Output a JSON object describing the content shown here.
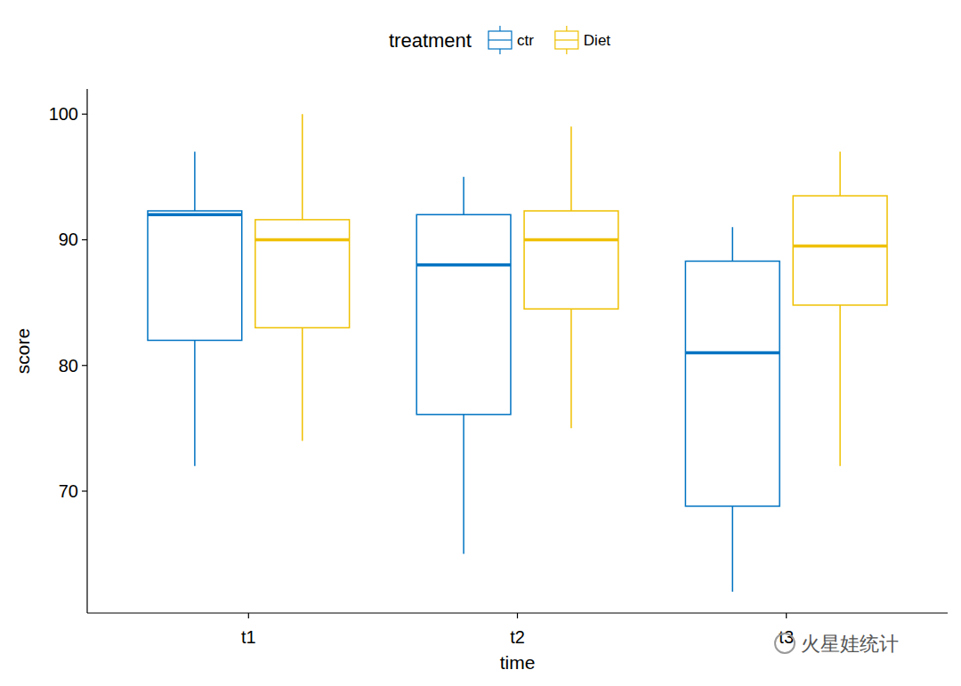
{
  "chart_data": {
    "type": "boxplot",
    "x_label": "time",
    "y_label": "score",
    "legend_title": "treatment",
    "legend": "top",
    "categories": [
      "t1",
      "t2",
      "t3"
    ],
    "series": [
      {
        "name": "ctr",
        "color": "#0073C2",
        "values": [
          {
            "min": 72,
            "q1": 82,
            "median": 92,
            "q3": 92.3,
            "max": 97
          },
          {
            "min": 65,
            "q1": 76.1,
            "median": 88,
            "q3": 92,
            "max": 95
          },
          {
            "min": 62,
            "q1": 68.8,
            "median": 81,
            "q3": 88.3,
            "max": 91
          }
        ]
      },
      {
        "name": "Diet",
        "color": "#EFC000",
        "values": [
          {
            "min": 74,
            "q1": 83,
            "median": 90,
            "q3": 91.6,
            "max": 100
          },
          {
            "min": 75,
            "q1": 84.5,
            "median": 90,
            "q3": 92.3,
            "max": 99
          },
          {
            "min": 72,
            "q1": 84.8,
            "median": 89.5,
            "q3": 93.5,
            "max": 97
          }
        ]
      }
    ],
    "ylim": [
      60.3,
      102
    ],
    "yticks": [
      70,
      80,
      90,
      100
    ],
    "grid": false,
    "annotations": [
      "火星娃统计"
    ]
  }
}
